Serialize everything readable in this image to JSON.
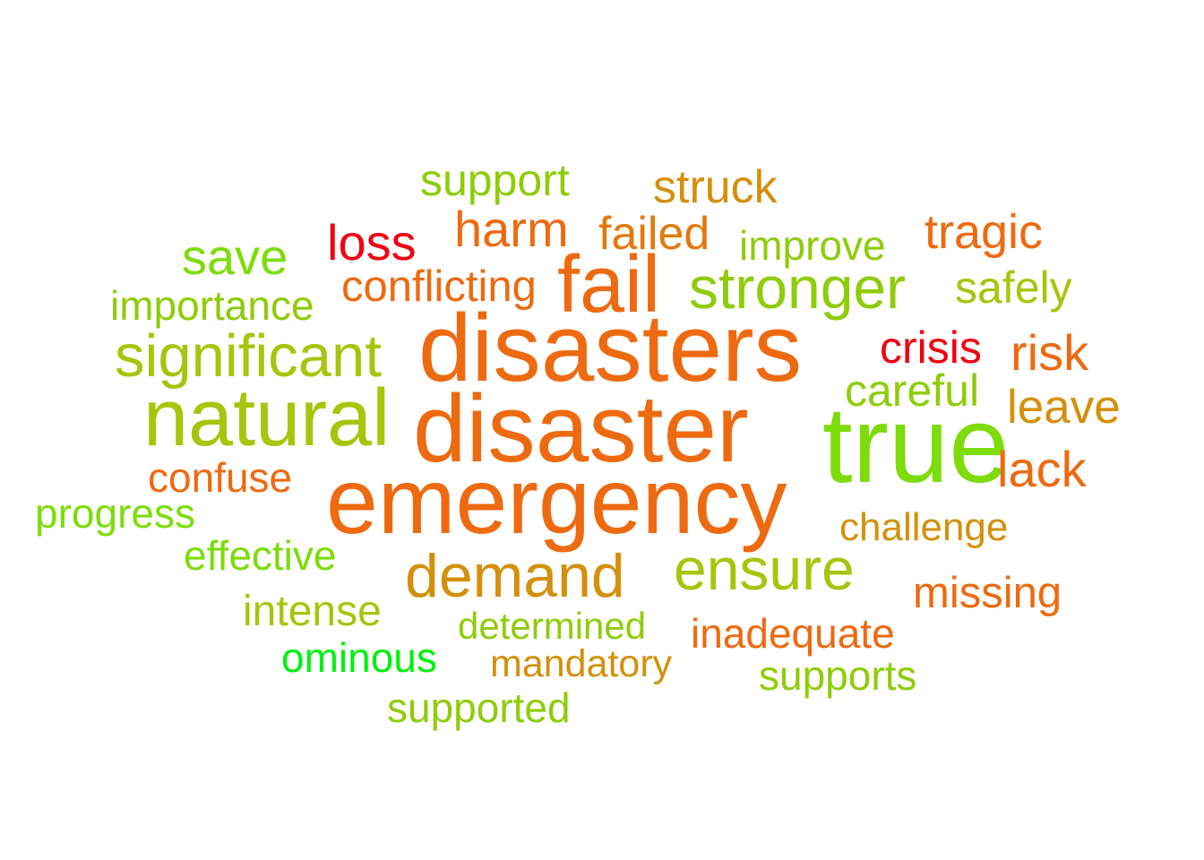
{
  "words": [
    {
      "text": "disasters",
      "color": "#ee6a10"
    },
    {
      "text": "disaster",
      "color": "#ee6a10"
    },
    {
      "text": "emergency",
      "color": "#ee6a10"
    },
    {
      "text": "true",
      "color": "#7ddc0a"
    },
    {
      "text": "natural",
      "color": "#a8c40c"
    },
    {
      "text": "fail",
      "color": "#ee6a10"
    },
    {
      "text": "significant",
      "color": "#a8c40c"
    },
    {
      "text": "stronger",
      "color": "#8fcc0a"
    },
    {
      "text": "ensure",
      "color": "#a8c40c"
    },
    {
      "text": "demand",
      "color": "#d4900c"
    },
    {
      "text": "support",
      "color": "#8fcc0a"
    },
    {
      "text": "struck",
      "color": "#d4900c"
    },
    {
      "text": "harm",
      "color": "#ee6a10"
    },
    {
      "text": "failed",
      "color": "#e4780e"
    },
    {
      "text": "improve",
      "color": "#8fcc0a"
    },
    {
      "text": "tragic",
      "color": "#ee6a10"
    },
    {
      "text": "loss",
      "color": "#ee0012"
    },
    {
      "text": "save",
      "color": "#7ddc0a"
    },
    {
      "text": "importance",
      "color": "#8fcc0a"
    },
    {
      "text": "conflicting",
      "color": "#ee6a10"
    },
    {
      "text": "safely",
      "color": "#a8c40c"
    },
    {
      "text": "crisis",
      "color": "#ee0012"
    },
    {
      "text": "risk",
      "color": "#ee6a10"
    },
    {
      "text": "careful",
      "color": "#8fcc0a"
    },
    {
      "text": "leave",
      "color": "#d4900c"
    },
    {
      "text": "lack",
      "color": "#ee6a10"
    },
    {
      "text": "confuse",
      "color": "#ee6a10"
    },
    {
      "text": "progress",
      "color": "#7ddc0a"
    },
    {
      "text": "challenge",
      "color": "#d4900c"
    },
    {
      "text": "effective",
      "color": "#7ddc0a"
    },
    {
      "text": "missing",
      "color": "#ee6a10"
    },
    {
      "text": "intense",
      "color": "#a8c40c"
    },
    {
      "text": "determined",
      "color": "#8fcc0a"
    },
    {
      "text": "inadequate",
      "color": "#ee6a10"
    },
    {
      "text": "ominous",
      "color": "#00f010"
    },
    {
      "text": "mandatory",
      "color": "#d4900c"
    },
    {
      "text": "supports",
      "color": "#8fcc0a"
    },
    {
      "text": "supported",
      "color": "#8fcc0a"
    }
  ]
}
